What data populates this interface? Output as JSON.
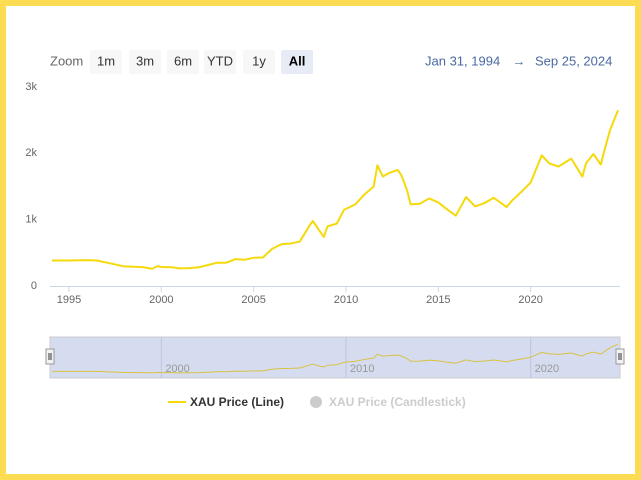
{
  "chart_data": {
    "type": "line",
    "zoom_label": "Zoom",
    "zoom_buttons": [
      "1m",
      "3m",
      "6m",
      "YTD",
      "1y",
      "All"
    ],
    "selected_zoom": 5,
    "range_from": "Jan 31, 1994",
    "range_arrow": "→",
    "range_to": "Sep 25, 2024",
    "x": [
      1994.08,
      1995,
      1996,
      1996.5,
      1997,
      1997.5,
      1998,
      1999,
      1999.5,
      1999.8,
      2000,
      2000.5,
      2001,
      2001.5,
      2002,
      2002.5,
      2003,
      2003.5,
      2004,
      2004.5,
      2005,
      2005.5,
      2006,
      2006.5,
      2007,
      2007.5,
      2008,
      2008.2,
      2008.8,
      2009,
      2009.5,
      2009.9,
      2010.5,
      2011,
      2011.5,
      2011.7,
      2012,
      2012.3,
      2012.8,
      2013,
      2013.3,
      2013.5,
      2014,
      2014.5,
      2015,
      2015.5,
      2015.95,
      2016.5,
      2017,
      2017.5,
      2018,
      2018.7,
      2019,
      2019.5,
      2020,
      2020.6,
      2021,
      2021.5,
      2022.2,
      2022.8,
      2023,
      2023.4,
      2023.8,
      2024,
      2024.3,
      2024.73
    ],
    "series": [
      {
        "name": "XAU Price (Line)",
        "color": "#f5d90a",
        "values": [
          385,
          385,
          390,
          385,
          355,
          325,
          295,
          285,
          260,
          300,
          285,
          285,
          265,
          270,
          280,
          315,
          350,
          350,
          405,
          395,
          425,
          430,
          560,
          630,
          640,
          670,
          900,
          980,
          740,
          900,
          940,
          1150,
          1230,
          1380,
          1500,
          1820,
          1650,
          1700,
          1750,
          1670,
          1450,
          1230,
          1240,
          1320,
          1260,
          1150,
          1060,
          1340,
          1200,
          1250,
          1330,
          1190,
          1290,
          1420,
          1560,
          1970,
          1850,
          1800,
          1920,
          1650,
          1850,
          1990,
          1830,
          2050,
          2350,
          2650
        ]
      }
    ],
    "hidden_series": [
      {
        "name": "XAU Price (Candlestick)",
        "color": "#cccccc"
      }
    ],
    "xlim": [
      1994.08,
      2024.73
    ],
    "xticks": [
      1995,
      2000,
      2005,
      2010,
      2015,
      2020
    ],
    "navigator_xticks": [
      2000,
      2010,
      2020
    ],
    "ylim": [
      0,
      3000
    ],
    "yticks": [
      0,
      {
        "value": 1000,
        "label": "1k"
      },
      {
        "value": 2000,
        "label": "2k"
      },
      {
        "value": 3000,
        "label": "3k"
      }
    ],
    "grid": false
  }
}
